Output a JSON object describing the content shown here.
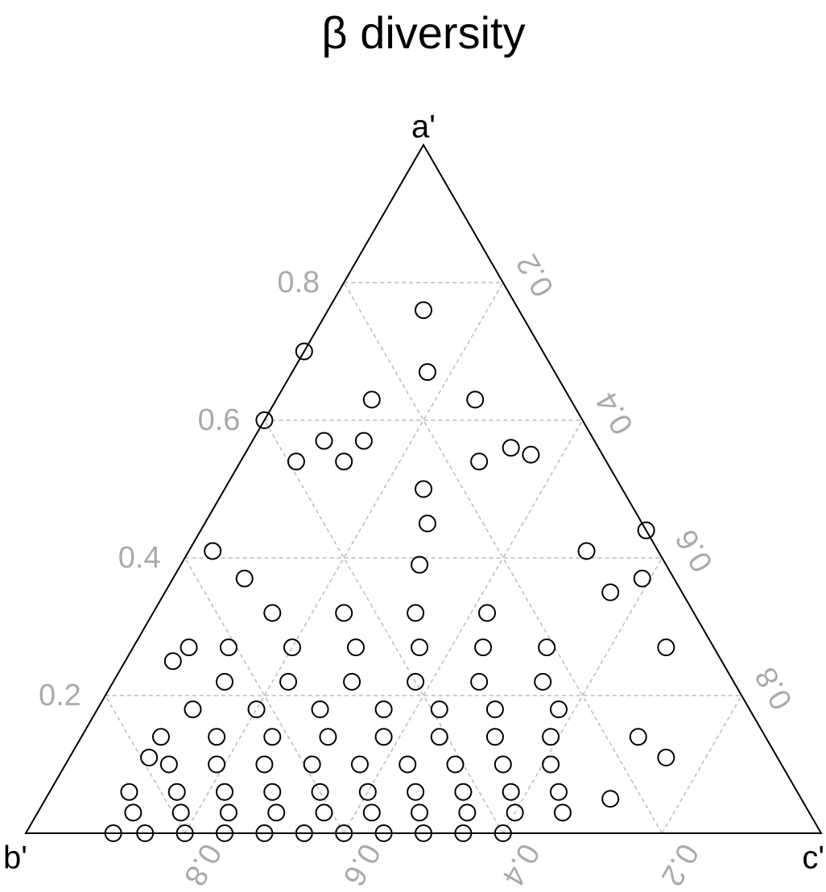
{
  "chart_data": {
    "type": "ternary",
    "title": "β diversity",
    "axis_labels": {
      "a": "a'",
      "b": "b'",
      "c": "c'"
    },
    "aticks": [
      0.2,
      0.4,
      0.6,
      0.8
    ],
    "bticks": [
      0.2,
      0.4,
      0.6,
      0.8
    ],
    "cticks": [
      0.2,
      0.4,
      0.6,
      0.8
    ],
    "grid": true,
    "color": "#000000",
    "a": [
      0.76,
      0.7,
      0.67,
      0.6,
      0.63,
      0.63,
      0.57,
      0.57,
      0.56,
      0.55,
      0.54,
      0.54,
      0.54,
      0.44,
      0.41,
      0.37,
      0.27,
      0.25,
      0.14,
      0.11,
      0.05,
      0.11,
      0.41,
      0.35,
      0.27,
      0.37,
      0.5,
      0.45,
      0.39,
      0,
      0,
      0,
      0,
      0,
      0,
      0,
      0,
      0,
      0,
      0,
      0.03,
      0.03,
      0.03,
      0.03,
      0.03,
      0.03,
      0.03,
      0.03,
      0.03,
      0.03,
      0.06,
      0.06,
      0.06,
      0.06,
      0.06,
      0.06,
      0.06,
      0.06,
      0.06,
      0.06,
      0.1,
      0.1,
      0.1,
      0.1,
      0.1,
      0.1,
      0.1,
      0.1,
      0.1,
      0.14,
      0.14,
      0.14,
      0.14,
      0.14,
      0.14,
      0.14,
      0.14,
      0.18,
      0.18,
      0.18,
      0.18,
      0.18,
      0.18,
      0.18,
      0.22,
      0.22,
      0.22,
      0.22,
      0.22,
      0.22,
      0.27,
      0.27,
      0.27,
      0.27,
      0.27,
      0.27,
      0.32,
      0.32,
      0.32,
      0.32
    ],
    "c": [
      0.12,
      0,
      0.17,
      0,
      0.12,
      0.25,
      0.09,
      0.14,
      0.33,
      0.36,
      0.3,
      0.07,
      0.13,
      0.56,
      0.03,
      0.59,
      0.67,
      0.06,
      0.7,
      0.75,
      0.71,
      0.1,
      0.5,
      0.56,
      0.07,
      0.09,
      0.25,
      0.28,
      0.3,
      0.11,
      0.15,
      0.2,
      0.25,
      0.3,
      0.35,
      0.4,
      0.45,
      0.5,
      0.55,
      0.6,
      0.12,
      0.18,
      0.24,
      0.3,
      0.36,
      0.42,
      0.48,
      0.54,
      0.6,
      0.66,
      0.1,
      0.16,
      0.22,
      0.28,
      0.34,
      0.4,
      0.46,
      0.52,
      0.58,
      0.64,
      0.13,
      0.19,
      0.25,
      0.31,
      0.37,
      0.43,
      0.49,
      0.55,
      0.61,
      0.1,
      0.17,
      0.24,
      0.31,
      0.38,
      0.45,
      0.52,
      0.59,
      0.12,
      0.2,
      0.28,
      0.36,
      0.43,
      0.5,
      0.58,
      0.14,
      0.22,
      0.3,
      0.38,
      0.46,
      0.54,
      0.12,
      0.2,
      0.28,
      0.36,
      0.44,
      0.52,
      0.15,
      0.24,
      0.33,
      0.42
    ]
  }
}
